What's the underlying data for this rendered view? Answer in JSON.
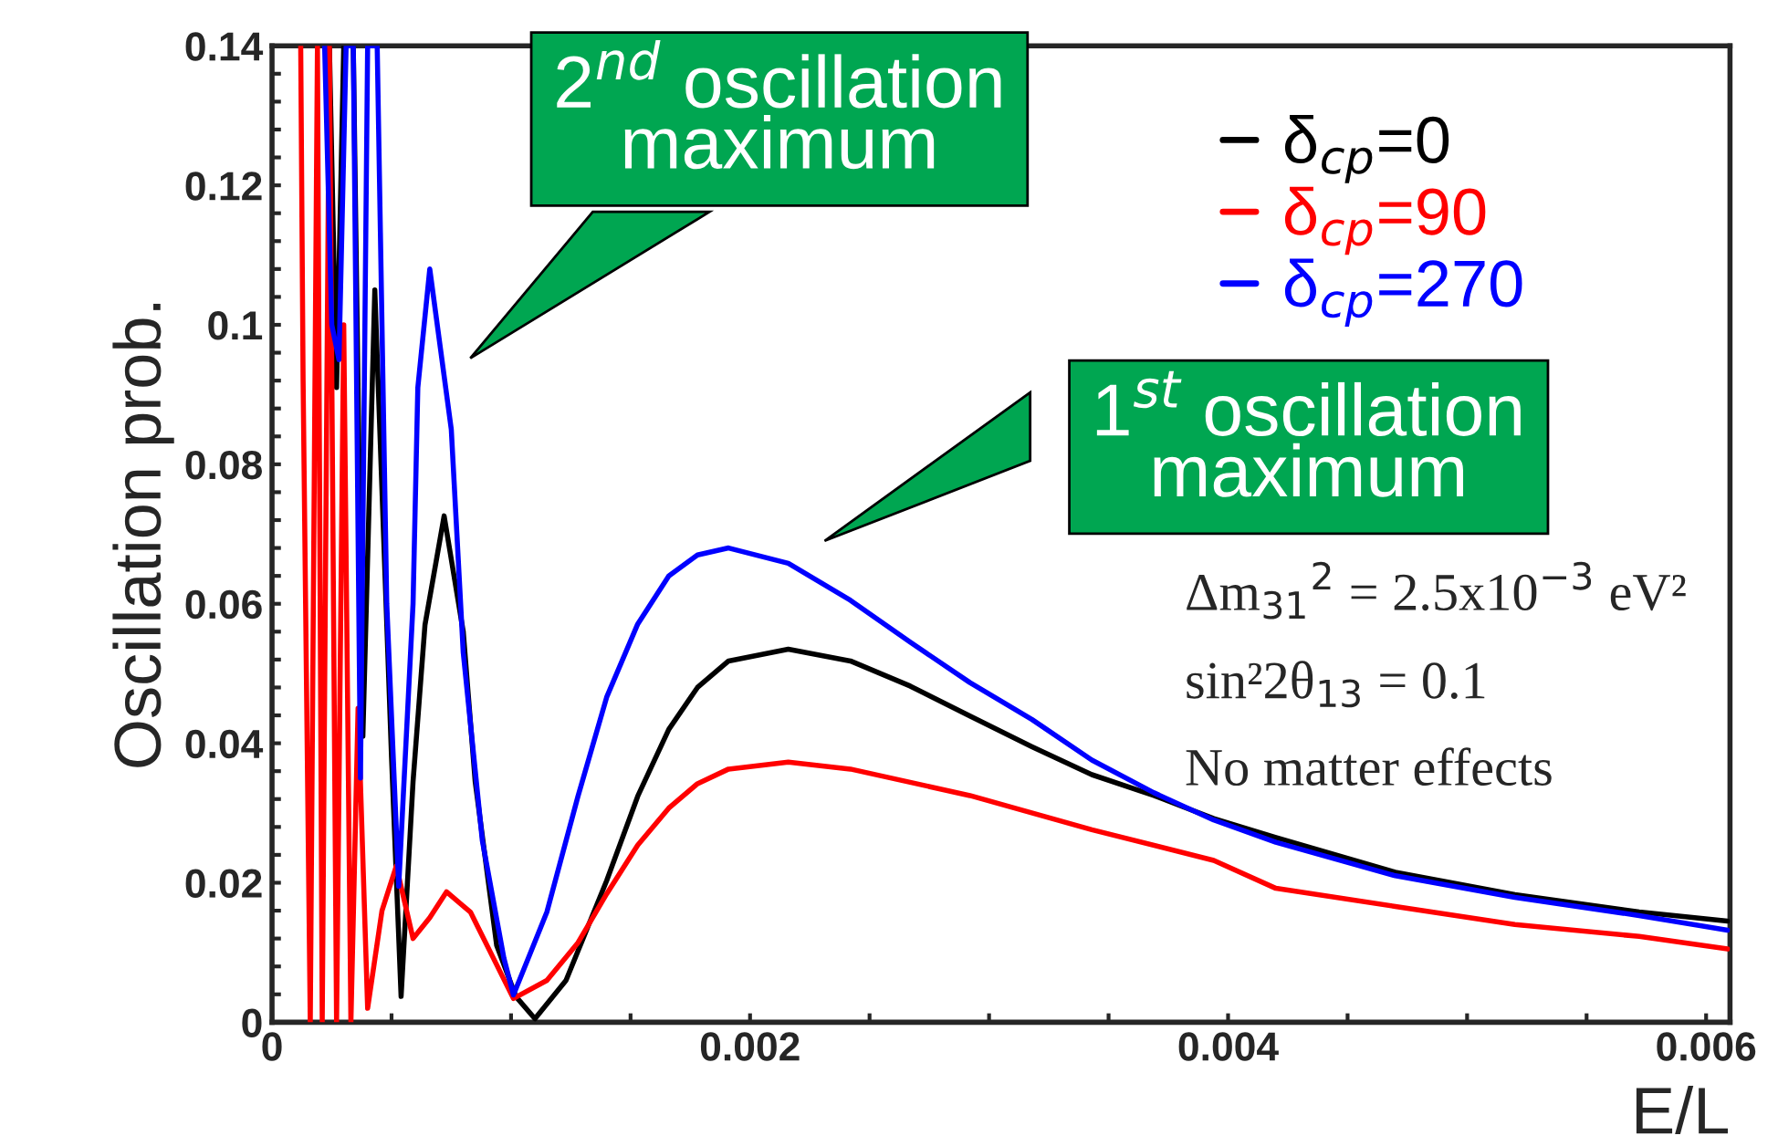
{
  "chart_data": {
    "type": "line",
    "xlabel": "E/L",
    "ylabel": "Oscillation prob.",
    "xlim": [
      0,
      0.0061
    ],
    "ylim": [
      0,
      0.14
    ],
    "xticks": [
      0,
      {
        "value": 0.0005,
        "label": null
      },
      {
        "value": 0.001,
        "label": null
      },
      {
        "value": 0.0015,
        "label": null
      },
      0.002,
      {
        "value": 0.0025,
        "label": null
      },
      {
        "value": 0.003,
        "label": null
      },
      {
        "value": 0.0035,
        "label": null
      },
      0.004,
      {
        "value": 0.0045,
        "label": null
      },
      {
        "value": 0.005,
        "label": null
      },
      {
        "value": 0.0055,
        "label": null
      },
      0.006
    ],
    "yticks": [
      0,
      {
        "value": 0.004,
        "label": null
      },
      {
        "value": 0.008,
        "label": null
      },
      {
        "value": 0.012,
        "label": null
      },
      {
        "value": 0.016,
        "label": null
      },
      0.02,
      {
        "value": 0.024,
        "label": null
      },
      {
        "value": 0.028,
        "label": null
      },
      {
        "value": 0.032,
        "label": null
      },
      {
        "value": 0.036,
        "label": null
      },
      0.04,
      {
        "value": 0.044,
        "label": null
      },
      {
        "value": 0.048,
        "label": null
      },
      {
        "value": 0.052,
        "label": null
      },
      {
        "value": 0.056,
        "label": null
      },
      0.06,
      {
        "value": 0.064,
        "label": null
      },
      {
        "value": 0.068,
        "label": null
      },
      {
        "value": 0.072,
        "label": null
      },
      {
        "value": 0.076,
        "label": null
      },
      0.08,
      {
        "value": 0.084,
        "label": null
      },
      {
        "value": 0.088,
        "label": null
      },
      {
        "value": 0.092,
        "label": null
      },
      {
        "value": 0.096,
        "label": null
      },
      0.1,
      {
        "value": 0.104,
        "label": null
      },
      {
        "value": 0.108,
        "label": null
      },
      {
        "value": 0.112,
        "label": null
      },
      {
        "value": 0.116,
        "label": null
      },
      0.12,
      {
        "value": 0.124,
        "label": null
      },
      {
        "value": 0.128,
        "label": null
      },
      {
        "value": 0.132,
        "label": null
      },
      {
        "value": 0.136,
        "label": null
      },
      0.14
    ],
    "grid": false,
    "legend": "top right",
    "marker": "none",
    "line_style": "solid",
    "series": [
      {
        "name": "δ$_{cp}$=0",
        "color": "#000000",
        "x": [
          0.00024,
          0.00027,
          0.0003,
          0.00034,
          0.00038,
          0.00043,
          0.0005,
          0.00054,
          0.00059,
          0.00064,
          0.00072,
          0.0008,
          0.00085,
          0.00094,
          0.00102,
          0.0011,
          0.00123,
          0.0014,
          0.00153,
          0.00166,
          0.00178,
          0.00191,
          0.00216,
          0.00242,
          0.00267,
          0.00292,
          0.00318,
          0.00343,
          0.00369,
          0.00394,
          0.0042,
          0.0047,
          0.0052,
          0.00572,
          0.00609
        ],
        "values": [
          0.14,
          0.091,
          0.14,
          0.14,
          0.041,
          0.105,
          0.038,
          0.0037,
          0.0345,
          0.057,
          0.0726,
          0.056,
          0.0345,
          0.011,
          0.0037,
          0.0005,
          0.006,
          0.0203,
          0.0324,
          0.042,
          0.048,
          0.0518,
          0.0535,
          0.0518,
          0.0482,
          0.0439,
          0.0395,
          0.0355,
          0.0325,
          0.0292,
          0.0265,
          0.0215,
          0.0183,
          0.0158,
          0.0145
        ]
      },
      {
        "name": "δ$_{cp}$=90",
        "color": "#ff0000",
        "x": [
          0.00012,
          0.00013,
          0.00016,
          0.00019,
          0.00021,
          0.00024,
          0.00027,
          0.0003,
          0.00033,
          0.00036,
          0.0004,
          0.00046,
          0.00052,
          0.00059,
          0.00066,
          0.00073,
          0.00083,
          0.00091,
          0.00101,
          0.00115,
          0.00128,
          0.0014,
          0.00153,
          0.00166,
          0.00178,
          0.00191,
          0.00216,
          0.00242,
          0.00292,
          0.00343,
          0.00394,
          0.0042,
          0.0047,
          0.0052,
          0.00572,
          0.00609
        ],
        "values": [
          0.14,
          0.092,
          0.0,
          0.14,
          0.0,
          0.14,
          0.0,
          0.1,
          0.0,
          0.045,
          0.002,
          0.016,
          0.0224,
          0.012,
          0.015,
          0.0187,
          0.0158,
          0.0103,
          0.0034,
          0.006,
          0.0114,
          0.0184,
          0.0254,
          0.0307,
          0.0342,
          0.0363,
          0.0373,
          0.0363,
          0.0325,
          0.0276,
          0.0232,
          0.0192,
          0.0166,
          0.014,
          0.0123,
          0.0105
        ]
      },
      {
        "name": "δ$_{cp}$=270",
        "color": "#0000ff",
        "x": [
          0.00022,
          0.00025,
          0.00028,
          0.00031,
          0.00034,
          0.00037,
          0.0004,
          0.00044,
          0.00048,
          0.00053,
          0.00059,
          0.00061,
          0.00066,
          0.00075,
          0.0008,
          0.00088,
          0.00097,
          0.00101,
          0.00115,
          0.00128,
          0.0014,
          0.00153,
          0.00166,
          0.00178,
          0.00191,
          0.00216,
          0.00242,
          0.00267,
          0.00292,
          0.00318,
          0.00343,
          0.00369,
          0.00394,
          0.0042,
          0.0047,
          0.0052,
          0.00572,
          0.00609
        ],
        "values": [
          0.14,
          0.1,
          0.095,
          0.14,
          0.14,
          0.035,
          0.14,
          0.14,
          0.06,
          0.0195,
          0.06,
          0.091,
          0.108,
          0.085,
          0.053,
          0.026,
          0.0092,
          0.0039,
          0.0158,
          0.0324,
          0.0466,
          0.0571,
          0.064,
          0.067,
          0.068,
          0.0658,
          0.0605,
          0.0545,
          0.0487,
          0.0434,
          0.0376,
          0.0329,
          0.029,
          0.0258,
          0.021,
          0.0179,
          0.0153,
          0.0132
        ]
      }
    ],
    "annotations": [
      "2$^{nd}$ oscillation\nmaximum",
      "1$^{st}$ oscillation\nmaximum",
      "Δm$_{31}$$^{2}$ = 2.5x10$^{−3}$ eV²",
      "sin²2θ$_{13}$ = 0.1",
      "No matter effects"
    ]
  }
}
